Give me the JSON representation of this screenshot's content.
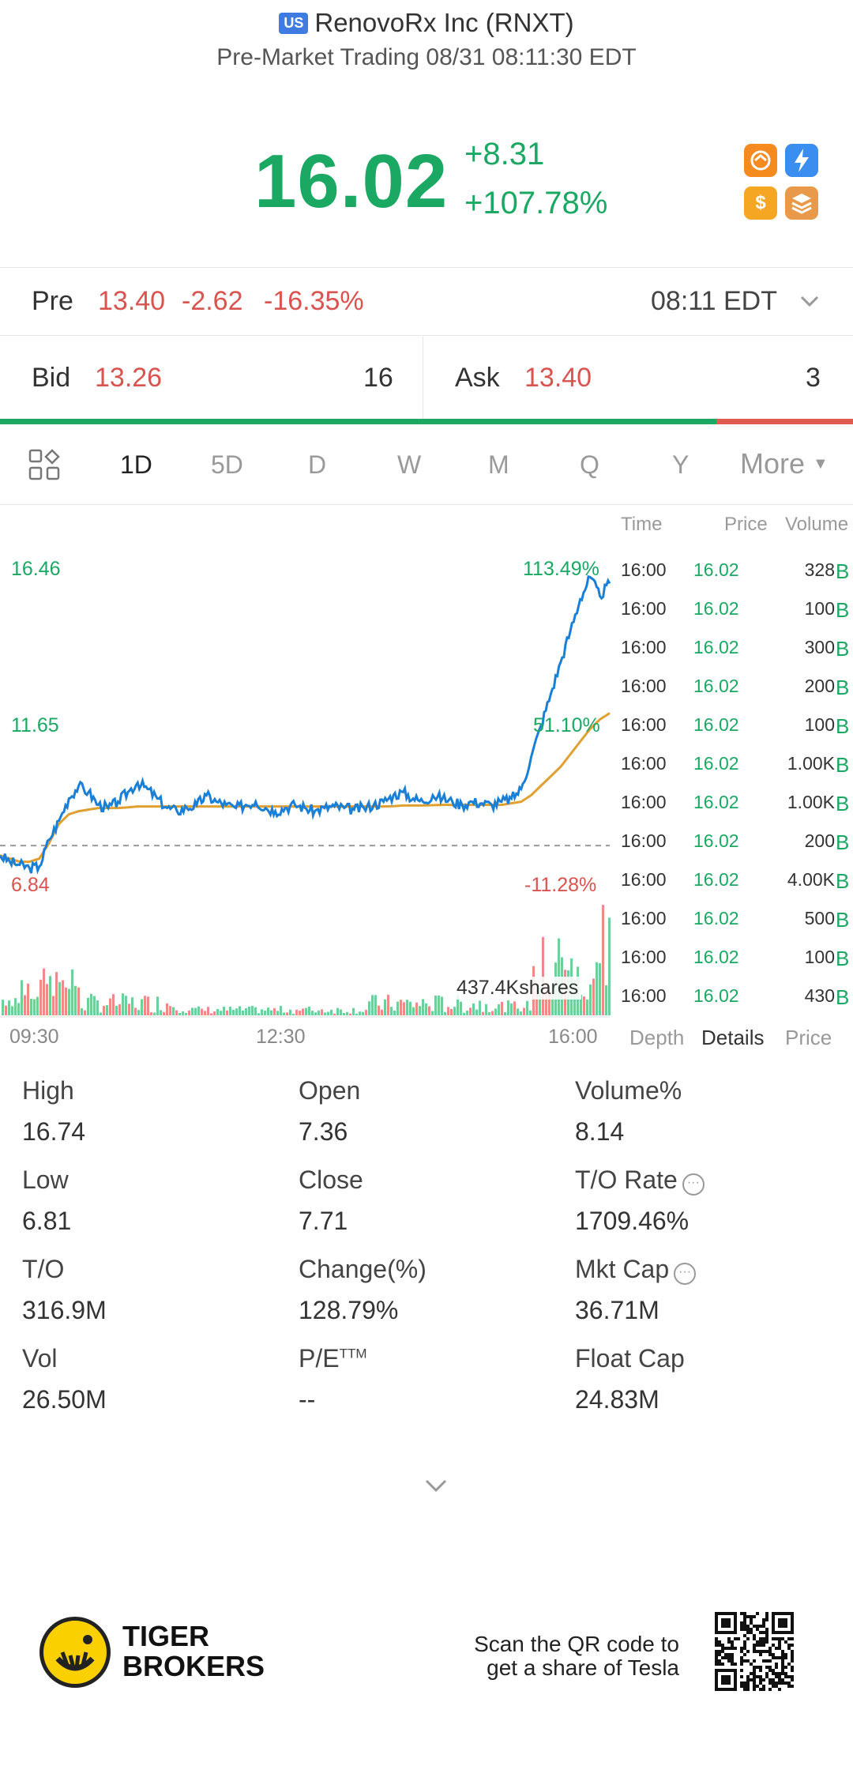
{
  "header": {
    "market_badge": "US",
    "title": "RenovoRx Inc (RNXT)",
    "subtitle": "Pre-Market Trading 08/31 08:11:30 EDT"
  },
  "quote": {
    "price": "16.02",
    "change": "+8.31",
    "change_pct": "+107.78%"
  },
  "app_icons": [
    {
      "name": "orange-swap-icon",
      "color": "#f58a1f"
    },
    {
      "name": "lightning-icon",
      "color": "#3a8ef0"
    },
    {
      "name": "dollar-icon",
      "color": "#f5a623"
    },
    {
      "name": "stack-icon",
      "color": "#e89a4a"
    }
  ],
  "pre": {
    "label": "Pre",
    "price": "13.40",
    "change": "-2.62",
    "change_pct": "-16.35%",
    "time": "08:11 EDT"
  },
  "bid_ask": {
    "bid_label": "Bid",
    "bid_price": "13.26",
    "bid_size": "16",
    "ask_label": "Ask",
    "ask_price": "13.40",
    "ask_size": "3",
    "bid_fraction": 0.84
  },
  "tabs": [
    "1D",
    "5D",
    "D",
    "W",
    "M",
    "Q",
    "Y"
  ],
  "active_tab": "1D",
  "more_label": "More",
  "chart_labels": {
    "high": "16.46",
    "mid": "11.65",
    "low": "6.84",
    "high_pct": "113.49%",
    "mid_pct": "51.10%",
    "low_pct": "-11.28%",
    "volume_label": "437.4Kshares",
    "x_ticks": [
      "09:30",
      "12:30",
      "16:00"
    ]
  },
  "chart_data": {
    "type": "line",
    "x_ticks": [
      "09:30",
      "12:30",
      "16:00"
    ],
    "ylim": [
      6.84,
      16.46
    ],
    "prev_close": 7.71,
    "price_series": [
      7.4,
      7.2,
      7.1,
      7.0,
      7.05,
      7.9,
      8.5,
      9.2,
      9.6,
      9.4,
      9.0,
      8.9,
      9.1,
      9.4,
      9.7,
      9.5,
      9.2,
      8.9,
      8.8,
      8.9,
      9.0,
      9.3,
      9.1,
      9.0,
      8.9,
      9.0,
      9.1,
      8.9,
      8.8,
      8.9,
      9.0,
      8.9,
      8.8,
      8.9,
      8.95,
      8.9,
      8.85,
      8.9,
      9.0,
      9.1,
      9.3,
      9.4,
      9.2,
      9.1,
      9.3,
      9.2,
      9.1,
      9.0,
      9.1,
      9.05,
      9.0,
      9.1,
      9.2,
      9.5,
      10.5,
      11.5,
      12.5,
      13.5,
      14.5,
      15.5,
      16.2,
      15.6,
      16.0
    ],
    "avg_series": [
      7.4,
      7.3,
      7.2,
      7.2,
      7.3,
      7.8,
      8.4,
      8.7,
      8.8,
      8.85,
      8.9,
      8.9,
      8.9,
      8.92,
      8.95,
      8.95,
      8.95,
      8.95,
      8.95,
      8.95,
      8.95,
      8.95,
      8.95,
      8.95,
      8.95,
      8.95,
      8.95,
      8.95,
      8.95,
      8.95,
      8.95,
      8.95,
      8.95,
      8.95,
      8.95,
      8.95,
      8.95,
      8.95,
      8.95,
      8.95,
      8.96,
      8.98,
      8.98,
      8.98,
      8.99,
      9.0,
      9.0,
      9.0,
      9.0,
      9.0,
      9.0,
      9.0,
      9.05,
      9.1,
      9.3,
      9.6,
      9.9,
      10.2,
      10.6,
      11.0,
      11.4,
      11.7,
      11.9
    ]
  },
  "ticks": {
    "headers": [
      "Time",
      "Price",
      "Volume"
    ],
    "rows": [
      {
        "time": "16:00",
        "price": "16.02",
        "vol": "328",
        "b": "B"
      },
      {
        "time": "16:00",
        "price": "16.02",
        "vol": "100",
        "b": "B"
      },
      {
        "time": "16:00",
        "price": "16.02",
        "vol": "300",
        "b": "B"
      },
      {
        "time": "16:00",
        "price": "16.02",
        "vol": "200",
        "b": "B"
      },
      {
        "time": "16:00",
        "price": "16.02",
        "vol": "100",
        "b": "B"
      },
      {
        "time": "16:00",
        "price": "16.02",
        "vol": "1.00K",
        "b": "B"
      },
      {
        "time": "16:00",
        "price": "16.02",
        "vol": "1.00K",
        "b": "B"
      },
      {
        "time": "16:00",
        "price": "16.02",
        "vol": "200",
        "b": "B"
      },
      {
        "time": "16:00",
        "price": "16.02",
        "vol": "4.00K",
        "b": "B"
      },
      {
        "time": "16:00",
        "price": "16.02",
        "vol": "500",
        "b": "B"
      },
      {
        "time": "16:00",
        "price": "16.02",
        "vol": "100",
        "b": "B"
      },
      {
        "time": "16:00",
        "price": "16.02",
        "vol": "430",
        "b": "B"
      }
    ],
    "tabs": [
      "Depth",
      "Details",
      "Price"
    ],
    "active": "Details"
  },
  "stats": [
    {
      "label": "High",
      "value": "16.74"
    },
    {
      "label": "Open",
      "value": "7.36"
    },
    {
      "label": "Volume%",
      "value": "8.14"
    },
    {
      "label": "Low",
      "value": "6.81"
    },
    {
      "label": "Close",
      "value": "7.71"
    },
    {
      "label": "T/O Rate",
      "value": "1709.46%",
      "info": true
    },
    {
      "label": "T/O",
      "value": "316.9M"
    },
    {
      "label": "Change(%)",
      "value": "128.79%"
    },
    {
      "label": "Mkt Cap",
      "value": "36.71M",
      "info": true
    },
    {
      "label": "Vol",
      "value": "26.50M"
    },
    {
      "label": "P/E",
      "sup": "TTM",
      "value": "--"
    },
    {
      "label": "Float Cap",
      "value": "24.83M"
    }
  ],
  "footer": {
    "brand_line1": "TIGER",
    "brand_line2": "BROKERS",
    "scan_line1": "Scan the QR code to",
    "scan_line2": "get a share of Tesla"
  }
}
